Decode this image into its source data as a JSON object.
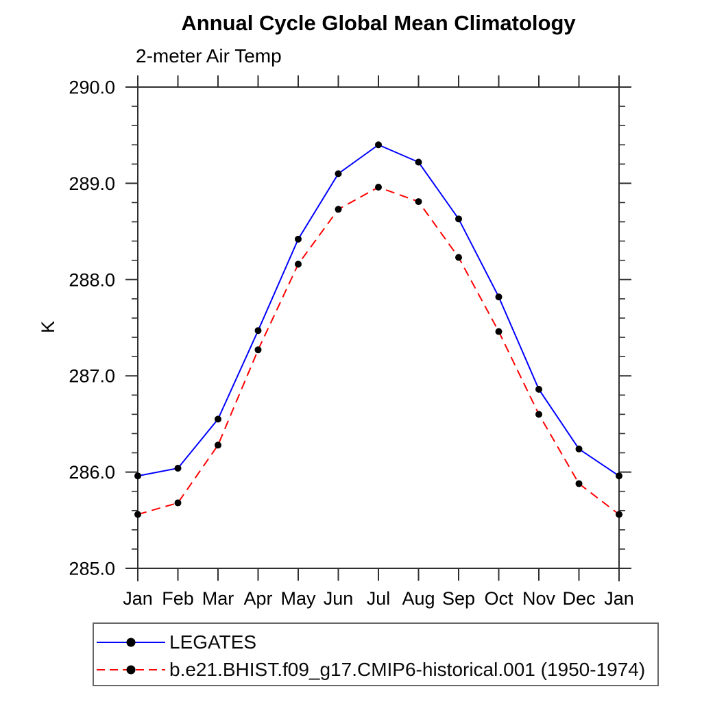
{
  "chart_data": {
    "type": "line",
    "title": "Annual Cycle Global Mean Climatology",
    "subtitle": "2-meter Air Temp",
    "ylabel": "K",
    "xlabel": "",
    "categories": [
      "Jan",
      "Feb",
      "Mar",
      "Apr",
      "May",
      "Jun",
      "Jul",
      "Aug",
      "Sep",
      "Oct",
      "Nov",
      "Dec",
      "Jan"
    ],
    "ylim": [
      285.0,
      290.0
    ],
    "y_major_ticks": [
      285.0,
      286.0,
      287.0,
      288.0,
      289.0,
      290.0
    ],
    "y_tick_labels": [
      "285.0",
      "286.0",
      "287.0",
      "288.0",
      "289.0",
      "290.0"
    ],
    "y_minor_step": 0.2,
    "grid": false,
    "legend_position": "bottom-left-box",
    "axis_color": "#2f2f2f",
    "marker": "filled-circle",
    "marker_color": "#000000",
    "series": [
      {
        "name": "LEGATES",
        "color": "#0000ff",
        "style": "solid",
        "values": [
          285.96,
          286.04,
          286.55,
          287.47,
          288.42,
          289.1,
          289.4,
          289.22,
          288.63,
          287.82,
          286.86,
          286.24,
          285.96
        ]
      },
      {
        "name": "b.e21.BHIST.f09_g17.CMIP6-historical.001 (1950-1974)",
        "color": "#ff0000",
        "style": "dashed",
        "values": [
          285.56,
          285.68,
          286.28,
          287.27,
          288.16,
          288.73,
          288.96,
          288.81,
          288.23,
          287.46,
          286.6,
          285.88,
          285.56
        ]
      }
    ]
  }
}
